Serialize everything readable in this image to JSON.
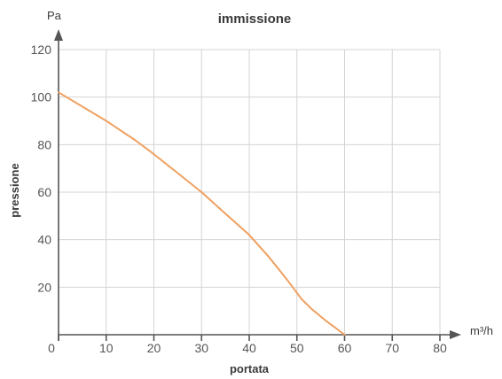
{
  "chart_data": {
    "type": "line",
    "title": "immissione",
    "xlabel": "portata",
    "ylabel": "pressione",
    "x_unit": "m³/h",
    "y_unit": "Pa",
    "xlim": [
      0,
      80
    ],
    "ylim": [
      0,
      120
    ],
    "x_ticks": [
      0,
      10,
      20,
      30,
      40,
      50,
      60,
      70,
      80
    ],
    "y_ticks": [
      20,
      40,
      60,
      80,
      100,
      120
    ],
    "grid": true,
    "series": [
      {
        "color": "#f0a060",
        "x": [
          0,
          5,
          10,
          16,
          20,
          25,
          30,
          35,
          40,
          44,
          48,
          51,
          53,
          56,
          58,
          60
        ],
        "y": [
          102,
          96,
          90,
          82,
          76,
          68,
          60,
          51,
          42,
          33,
          23,
          15,
          11,
          6,
          3,
          0
        ]
      }
    ]
  }
}
